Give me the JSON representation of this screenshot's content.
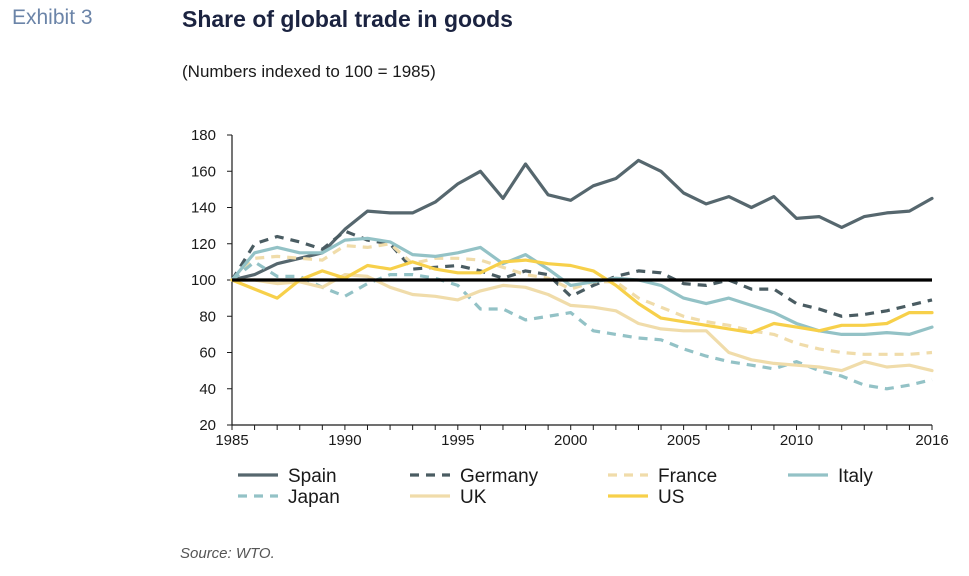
{
  "header": {
    "exhibit": "Exhibit 3",
    "title": "Share of global trade in goods",
    "subtitle": "(Numbers indexed to 100 = 1985)"
  },
  "footer": {
    "source": "Source: WTO."
  },
  "chart_data": {
    "type": "line",
    "title": "Share of global trade in goods",
    "subtitle": "(Numbers indexed to 100 = 1985)",
    "xlabel": "",
    "ylabel": "",
    "x": [
      1985,
      1986,
      1987,
      1988,
      1989,
      1990,
      1991,
      1992,
      1993,
      1994,
      1995,
      1996,
      1997,
      1998,
      1999,
      2000,
      2001,
      2002,
      2003,
      2004,
      2005,
      2006,
      2007,
      2008,
      2009,
      2010,
      2011,
      2012,
      2013,
      2014,
      2015,
      2016
    ],
    "xlim": [
      1985,
      2016
    ],
    "ylim": [
      20,
      180
    ],
    "x_ticks": [
      "1985",
      "1990",
      "1995",
      "2000",
      "2005",
      "2010",
      "2016"
    ],
    "y_ticks": [
      "20",
      "40",
      "60",
      "80",
      "100",
      "120",
      "140",
      "160",
      "180"
    ],
    "reference_line": 100,
    "grid": false,
    "legend_position": "bottom",
    "series": [
      {
        "name": "Spain",
        "color": "#56676e",
        "style": "solid",
        "values": [
          100,
          103,
          109,
          112,
          115,
          128,
          138,
          137,
          137,
          143,
          153,
          160,
          145,
          164,
          147,
          144,
          152,
          156,
          166,
          160,
          148,
          142,
          146,
          140,
          146,
          134,
          135,
          129,
          135,
          137,
          138,
          145
        ]
      },
      {
        "name": "Germany",
        "color": "#4a5c62",
        "style": "dashed",
        "values": [
          100,
          120,
          124,
          121,
          117,
          127,
          122,
          120,
          106,
          107,
          108,
          105,
          101,
          105,
          103,
          91,
          97,
          102,
          105,
          104,
          98,
          97,
          100,
          95,
          95,
          87,
          84,
          80,
          81,
          83,
          86,
          89
        ]
      },
      {
        "name": "France",
        "color": "#f0dcaa",
        "style": "dashed",
        "values": [
          100,
          112,
          113,
          112,
          111,
          119,
          118,
          120,
          109,
          112,
          112,
          111,
          107,
          103,
          101,
          95,
          99,
          99,
          90,
          85,
          80,
          77,
          75,
          72,
          70,
          65,
          62,
          60,
          59,
          59,
          59,
          60
        ]
      },
      {
        "name": "Italy",
        "color": "#93c2c6",
        "style": "solid",
        "values": [
          100,
          115,
          118,
          115,
          115,
          122,
          123,
          121,
          114,
          113,
          115,
          118,
          109,
          114,
          106,
          97,
          99,
          101,
          100,
          97,
          90,
          87,
          90,
          86,
          82,
          76,
          72,
          70,
          70,
          71,
          70,
          74
        ]
      },
      {
        "name": "Japan",
        "color": "#93c2c6",
        "style": "dashed",
        "values": [
          100,
          110,
          102,
          102,
          96,
          91,
          98,
          103,
          103,
          101,
          97,
          84,
          84,
          78,
          80,
          82,
          72,
          70,
          68,
          67,
          62,
          58,
          55,
          53,
          51,
          55,
          50,
          47,
          42,
          40,
          42,
          45
        ]
      },
      {
        "name": "UK",
        "color": "#f0dcaa",
        "style": "solid",
        "values": [
          100,
          100,
          98,
          99,
          96,
          103,
          102,
          96,
          92,
          91,
          89,
          94,
          97,
          96,
          92,
          86,
          85,
          83,
          76,
          73,
          72,
          72,
          60,
          56,
          54,
          53,
          52,
          50,
          55,
          52,
          53,
          50
        ]
      },
      {
        "name": "US",
        "color": "#f7d04a",
        "style": "solid",
        "values": [
          100,
          95,
          90,
          100,
          105,
          101,
          108,
          106,
          110,
          106,
          104,
          104,
          110,
          111,
          109,
          108,
          105,
          97,
          87,
          79,
          77,
          75,
          73,
          71,
          76,
          74,
          72,
          75,
          75,
          76,
          82,
          82
        ]
      }
    ]
  }
}
